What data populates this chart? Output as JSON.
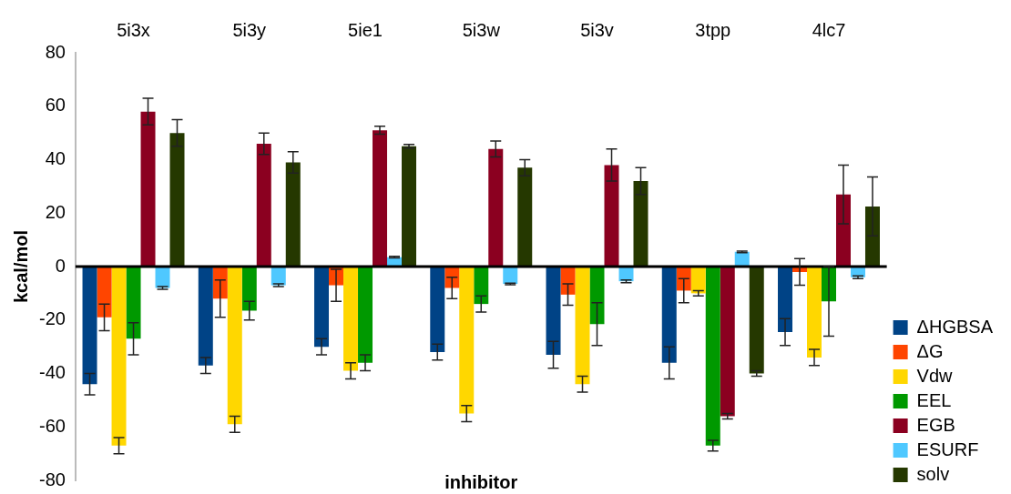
{
  "chart_data": {
    "type": "bar",
    "xlabel": "inhibitor",
    "ylabel": "kcal/mol",
    "categories": [
      "5i3x",
      "5i3y",
      "5ie1",
      "5i3w",
      "5i3v",
      "3tpp",
      "4lc7"
    ],
    "series": [
      {
        "name": "ΔHGBSA",
        "color": "#004386",
        "values": [
          -44,
          -37,
          -30,
          -32,
          -33,
          -36,
          -24.5
        ],
        "errors": [
          4,
          3,
          3,
          3,
          5,
          6,
          5
        ]
      },
      {
        "name": "ΔG",
        "color": "#ff4500",
        "values": [
          -19,
          -12,
          -7,
          -8,
          -10.5,
          -9,
          -2
        ],
        "errors": [
          5,
          7,
          6,
          4,
          4,
          4.5,
          5
        ]
      },
      {
        "name": "Vdw",
        "color": "#ffd700",
        "values": [
          -67,
          -59,
          -39,
          -55,
          -44,
          -10,
          -34
        ],
        "errors": [
          3,
          3,
          3,
          3,
          3,
          1,
          3
        ]
      },
      {
        "name": "EEL",
        "color": "#009900",
        "values": [
          -27,
          -16.5,
          -36,
          -14,
          -21.5,
          -67,
          -13
        ],
        "errors": [
          6,
          3.5,
          3,
          3,
          8,
          2,
          13
        ]
      },
      {
        "name": "EGB",
        "color": "#8b0020",
        "values": [
          58,
          46,
          51,
          44,
          38,
          -56,
          27
        ],
        "errors": [
          5,
          4,
          1.5,
          3,
          6,
          1,
          11
        ]
      },
      {
        "name": "ESURF",
        "color": "#4fc8ff",
        "values": [
          -8,
          -7,
          3.5,
          -6.5,
          -5.5,
          5.5,
          -4
        ],
        "errors": [
          0.5,
          0.5,
          0.3,
          0.3,
          0.5,
          0.3,
          0.5
        ]
      },
      {
        "name": "solv",
        "color": "#253800",
        "values": [
          50,
          39,
          45,
          37,
          32,
          -40,
          22.5
        ],
        "errors": [
          5,
          4,
          0.7,
          3,
          5,
          1,
          11
        ]
      }
    ],
    "ylim": [
      -80,
      80
    ],
    "yticks": [
      -80,
      -60,
      -40,
      -20,
      0,
      20,
      40,
      60,
      80
    ],
    "ref_lines": [
      {
        "axis": "y",
        "value": 0,
        "color": "#000000",
        "line_style": "solid"
      }
    ],
    "grid": false,
    "legend": "right"
  }
}
